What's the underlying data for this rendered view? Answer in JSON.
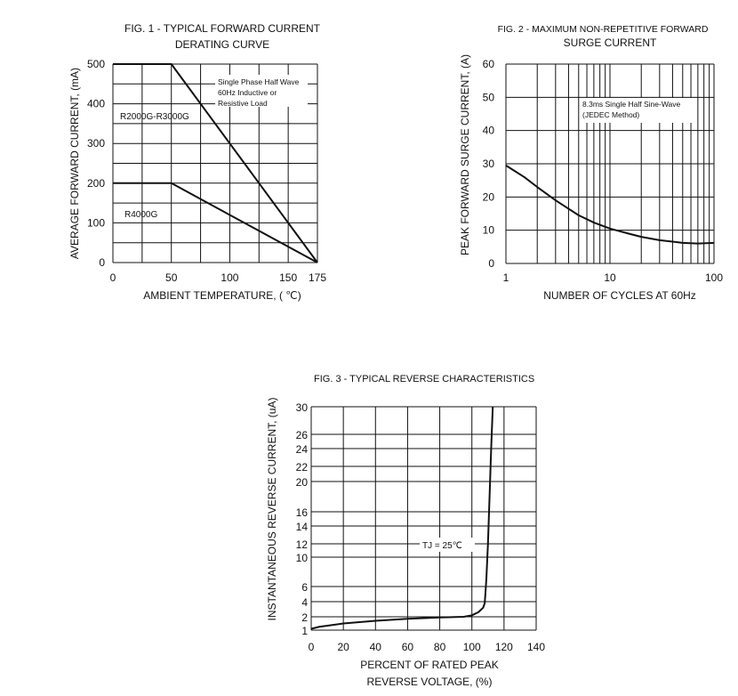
{
  "chart_data": [
    {
      "type": "line",
      "title": [
        "FIG. 1 - TYPICAL FORWARD CURRENT",
        "DERATING CURVE"
      ],
      "xlabel": "AMBIENT TEMPERATURE, ( ℃)",
      "ylabel": "AVERAGE FORWARD CURRENT, (mA)",
      "xlim": [
        0,
        175
      ],
      "ylim": [
        0,
        500
      ],
      "xticks": [
        "0",
        "50",
        "100",
        "150",
        "175"
      ],
      "yticks": [
        "0",
        "100",
        "200",
        "300",
        "400",
        "500"
      ],
      "grid": true,
      "annotation": [
        "Single Phase Half Wave",
        "60Hz Inductive or",
        "Resistive Load"
      ],
      "series": [
        {
          "name": "R2000G-R3000G",
          "x": [
            0,
            50,
            175
          ],
          "y": [
            500,
            500,
            0
          ]
        },
        {
          "name": "R4000G",
          "x": [
            0,
            50,
            175
          ],
          "y": [
            200,
            200,
            0
          ]
        }
      ]
    },
    {
      "type": "line",
      "title": [
        "FIG. 2 - MAXIMUM NON-REPETITIVE FORWARD",
        "SURGE CURRENT"
      ],
      "xlabel": "NUMBER OF CYCLES AT 60Hz",
      "ylabel": "PEAK FORWARD SURGE CURRENT, (A)",
      "xscale": "log",
      "xlim": [
        1,
        100
      ],
      "ylim": [
        0,
        60
      ],
      "xticks": [
        "1",
        "10",
        "100"
      ],
      "yticks": [
        "0",
        "10",
        "20",
        "30",
        "40",
        "50",
        "60"
      ],
      "grid": true,
      "annotation": [
        "8.3ms Single Half Sine-Wave",
        "(JEDEC Method)"
      ],
      "series": [
        {
          "x": [
            1,
            1.5,
            2,
            3,
            5,
            7,
            10,
            15,
            20,
            30,
            50,
            70,
            100
          ],
          "y": [
            29.5,
            26,
            23,
            19,
            14.5,
            12.3,
            10.5,
            9,
            8,
            7,
            6.2,
            6,
            6.2
          ]
        }
      ]
    },
    {
      "type": "line",
      "title": "FIG. 3 - TYPICAL REVERSE CHARACTERISTICS",
      "xlabel": [
        "PERCENT OF RATED PEAK",
        "REVERSE VOLTAGE, (%)"
      ],
      "ylabel": "INSTANTANEOUS REVERSE CURRENT, (uA)",
      "xlim": [
        0,
        140
      ],
      "ylim": [
        1,
        30
      ],
      "xticks": [
        "0",
        "20",
        "40",
        "60",
        "80",
        "100",
        "120",
        "140"
      ],
      "yticks": [
        "1",
        "2",
        "4",
        "6",
        "10",
        "12",
        "14",
        "16",
        "20",
        "22",
        "24",
        "26",
        "30"
      ],
      "grid": true,
      "annotation": "TJ = 25℃",
      "series": [
        {
          "x": [
            0,
            5,
            20,
            40,
            60,
            80,
            95,
            100,
            104,
            107,
            108,
            109,
            110,
            111,
            112,
            113
          ],
          "y": [
            1.1,
            1.25,
            1.5,
            1.7,
            1.85,
            1.95,
            2.0,
            2.2,
            2.6,
            3.2,
            3.8,
            7,
            12,
            18,
            24,
            30
          ]
        }
      ]
    }
  ]
}
